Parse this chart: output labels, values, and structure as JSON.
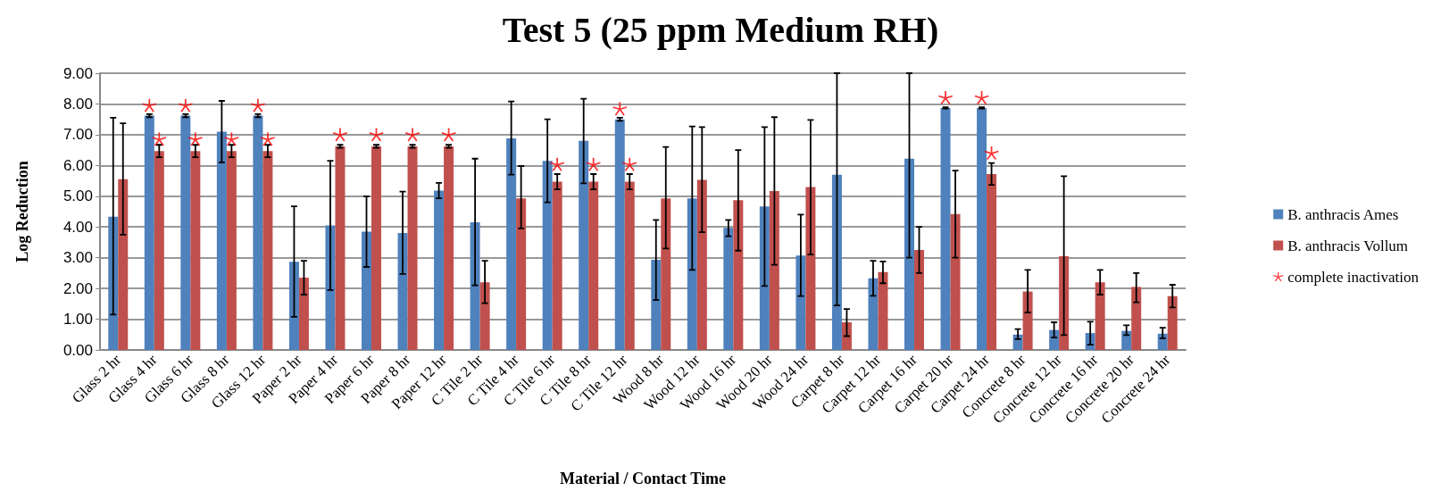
{
  "chart_data": {
    "type": "bar",
    "title": "Test 5 (25 ppm Medium RH)",
    "xlabel": "Material / Contact Time",
    "ylabel": "Log Reduction",
    "categories": [
      "Glass 2 hr",
      "Glass 4 hr",
      "Glass 6 hr",
      "Glass 8 hr",
      "Glass 12 hr",
      "Paper 2 hr",
      "Paper 4 hr",
      "Paper 6 hr",
      "Paper 8 hr",
      "Paper 12 hr",
      "C Tile 2 hr",
      "C Tile 4 hr",
      "C Tile 6 hr",
      "C Tile 8 hr",
      "C Tile 12 hr",
      "Wood 8 hr",
      "Wood 12 hr",
      "Wood 16 hr",
      "Wood 20 hr",
      "Wood 24 hr",
      "Carpet 8 hr",
      "Carpet 12 hr",
      "Carpet 16 hr",
      "Carpet 20 hr",
      "Carpet 24 hr",
      "Concrete 8 hr",
      "Concrete 12 hr",
      "Concrete 16 hr",
      "Concrete 20 hr",
      "Concrete 24 hr"
    ],
    "series": [
      {
        "name": "B. anthracis Ames",
        "color": "#4f81bd",
        "values": [
          4.33,
          7.62,
          7.62,
          7.1,
          7.62,
          2.87,
          4.05,
          3.85,
          3.8,
          5.18,
          4.15,
          6.88,
          6.15,
          6.8,
          7.5,
          2.93,
          4.93,
          3.97,
          4.67,
          3.07,
          5.7,
          2.33,
          6.22,
          7.87,
          7.87,
          0.5,
          0.65,
          0.55,
          0.62,
          0.53
        ],
        "errors": [
          [
            1.15,
            7.55
          ],
          [
            7.57,
            7.67
          ],
          [
            7.57,
            7.67
          ],
          [
            6.1,
            8.1
          ],
          [
            7.57,
            7.67
          ],
          [
            1.08,
            4.67
          ],
          [
            1.95,
            6.15
          ],
          [
            2.7,
            5.0
          ],
          [
            2.47,
            5.15
          ],
          [
            4.93,
            5.43
          ],
          [
            2.1,
            6.22
          ],
          [
            5.7,
            8.08
          ],
          [
            4.8,
            7.5
          ],
          [
            5.42,
            8.17
          ],
          [
            7.45,
            7.55
          ],
          [
            1.62,
            4.23
          ],
          [
            2.6,
            7.27
          ],
          [
            3.7,
            4.23
          ],
          [
            2.08,
            7.25
          ],
          [
            1.75,
            4.4
          ],
          [
            1.45,
            9
          ],
          [
            1.76,
            2.9
          ],
          [
            3.0,
            9
          ],
          [
            7.85,
            7.89
          ],
          [
            7.85,
            7.89
          ],
          [
            0.35,
            0.68
          ],
          [
            0.4,
            0.9
          ],
          [
            0.17,
            0.92
          ],
          [
            0.48,
            0.8
          ],
          [
            0.38,
            0.72
          ]
        ]
      },
      {
        "name": "B. anthracis Vollum",
        "color": "#c0504d",
        "values": [
          5.55,
          6.47,
          6.47,
          6.47,
          6.47,
          2.35,
          6.62,
          6.62,
          6.62,
          6.62,
          2.2,
          4.93,
          5.47,
          5.47,
          5.47,
          4.93,
          5.53,
          4.87,
          5.17,
          5.3,
          0.9,
          2.53,
          3.25,
          4.42,
          5.72,
          1.9,
          3.05,
          2.2,
          2.05,
          1.75
        ],
        "errors": [
          [
            3.75,
            7.37
          ],
          [
            6.27,
            6.67
          ],
          [
            6.27,
            6.67
          ],
          [
            6.27,
            6.67
          ],
          [
            6.27,
            6.67
          ],
          [
            1.8,
            2.9
          ],
          [
            6.57,
            6.67
          ],
          [
            6.57,
            6.67
          ],
          [
            6.57,
            6.67
          ],
          [
            6.57,
            6.67
          ],
          [
            1.52,
            2.9
          ],
          [
            3.95,
            5.98
          ],
          [
            5.22,
            5.72
          ],
          [
            5.22,
            5.72
          ],
          [
            5.22,
            5.72
          ],
          [
            3.3,
            6.6
          ],
          [
            3.83,
            7.25
          ],
          [
            3.23,
            6.5
          ],
          [
            2.77,
            7.57
          ],
          [
            3.1,
            7.48
          ],
          [
            0.45,
            1.33
          ],
          [
            2.17,
            2.88
          ],
          [
            2.5,
            4.0
          ],
          [
            3.0,
            5.83
          ],
          [
            5.37,
            6.08
          ],
          [
            1.22,
            2.6
          ],
          [
            0.48,
            5.65
          ],
          [
            1.8,
            2.6
          ],
          [
            1.55,
            2.5
          ],
          [
            1.38,
            2.12
          ]
        ]
      },
      {
        "name": "complete inactivation",
        "type": "scatter",
        "color": "#ff0000",
        "x": [
          "Glass 4 hr",
          "Glass 6 hr",
          "Glass 12 hr",
          "C Tile 12 hr",
          "Carpet 20 hr",
          "Carpet 24 hr"
        ],
        "values": [
          7.95,
          7.95,
          7.95,
          7.84,
          8.2,
          8.2
        ]
      },
      {
        "type": "scatter",
        "color": "#ff0000",
        "x": [
          "Glass 4 hr",
          "Glass 6 hr",
          "Glass 8 hr",
          "Glass 12 hr",
          "Paper 4 hr",
          "Paper 6 hr",
          "Paper 8 hr",
          "Paper 12 hr",
          "C Tile 6 hr",
          "C Tile 8 hr",
          "C Tile 12 hr",
          "Carpet 24 hr"
        ],
        "values": [
          6.85,
          6.85,
          6.85,
          6.85,
          7.0,
          7.0,
          7.0,
          7.0,
          6.03,
          6.03,
          6.03,
          6.4
        ]
      }
    ],
    "marker": "star",
    "ylim": [
      0,
      9
    ],
    "yticks": [
      {
        "value": 0,
        "label": "0.00"
      },
      {
        "value": 1,
        "label": "1.00"
      },
      {
        "value": 2,
        "label": "2.00"
      },
      {
        "value": 3,
        "label": "3.00"
      },
      {
        "value": 4,
        "label": "4.00"
      },
      {
        "value": 5,
        "label": "5.00"
      },
      {
        "value": 6,
        "label": "6.00"
      },
      {
        "value": 7,
        "label": "7.00"
      },
      {
        "value": 8,
        "label": "8.00"
      },
      {
        "value": 9,
        "label": "9.00"
      }
    ],
    "grid": "y",
    "legend": "right"
  }
}
